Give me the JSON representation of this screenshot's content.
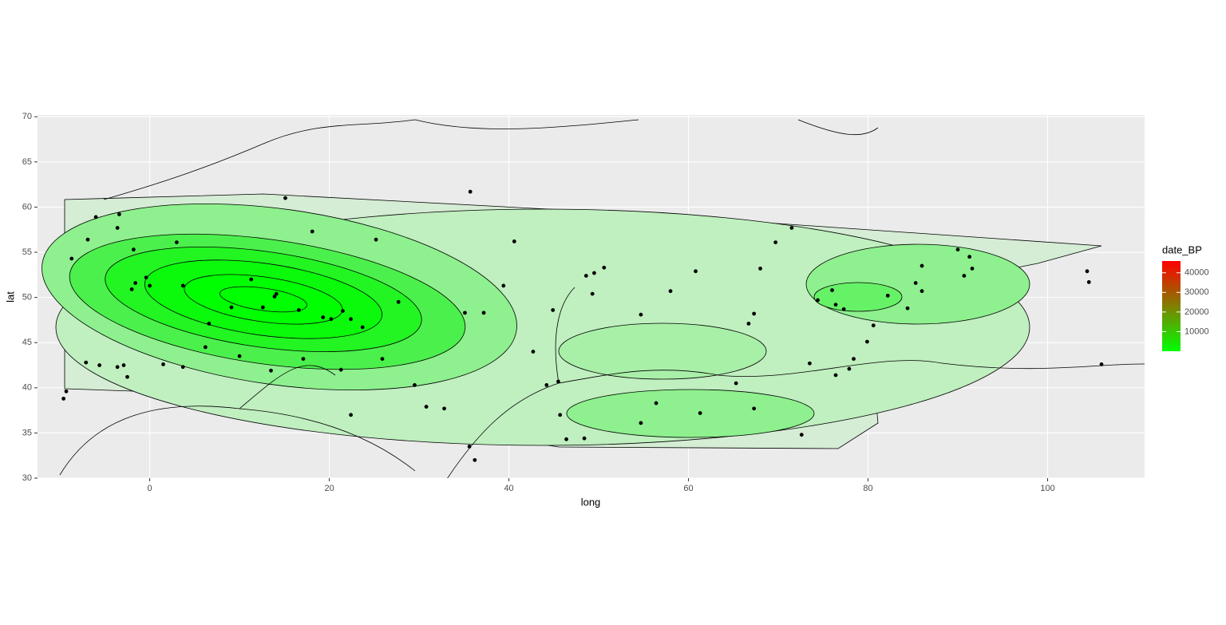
{
  "chart_data": {
    "type": "scatter",
    "x_label": "long",
    "y_label": "lat",
    "xlim": [
      -12.5,
      110.8
    ],
    "ylim": [
      30,
      70.2
    ],
    "xticks": [
      0,
      20,
      40,
      60,
      80,
      100
    ],
    "yticks": [
      30,
      35,
      40,
      45,
      50,
      55,
      60,
      65,
      70
    ],
    "grid": true,
    "color": "#000000",
    "x": [
      -3.4,
      -6.0,
      -6.9,
      -3.6,
      -8.7,
      -1.8,
      3.0,
      -0.4,
      -1.6,
      0,
      -2.0,
      -7.1,
      -5.6,
      -2.9,
      -3.6,
      -2.5,
      -9.3,
      -9.6,
      3.7,
      9.1,
      6.6,
      6.2,
      11.3,
      12.6,
      14.1,
      13.9,
      16.6,
      15.1,
      18.1,
      19.3,
      20.2,
      21.5,
      22.4,
      23.7,
      17.1,
      13.5,
      10.0,
      21.3,
      25.9,
      25.2,
      27.7,
      29.5,
      30.8,
      32.8,
      35.1,
      37.2,
      35.7,
      40.6,
      39.4,
      44.9,
      42.7,
      44.2,
      45.5,
      45.7,
      46.4,
      48.4,
      48.6,
      49.5,
      50.6,
      49.3,
      54.7,
      54.7,
      56.4,
      58.0,
      60.8,
      61.3,
      65.3,
      66.7,
      67.3,
      68.0,
      69.7,
      71.5,
      67.3,
      72.6,
      73.5,
      74.4,
      76.0,
      76.4,
      77.3,
      76.4,
      77.9,
      78.4,
      79.9,
      80.6,
      82.2,
      84.4,
      85.3,
      86.0,
      86.0,
      90.0,
      91.3,
      91.6,
      90.7,
      104.4,
      104.6,
      106.0,
      36.2,
      35.6,
      22.4,
      1.5,
      3.7
    ],
    "values": [
      59.2,
      58.9,
      56.4,
      57.7,
      54.3,
      55.3,
      56.1,
      52.2,
      51.6,
      51.3,
      50.9,
      42.8,
      42.5,
      42.5,
      42.3,
      41.2,
      39.6,
      38.8,
      51.3,
      48.9,
      47.1,
      44.5,
      52.0,
      48.9,
      50.4,
      50.1,
      48.6,
      61.0,
      57.3,
      47.8,
      47.6,
      48.5,
      47.6,
      46.7,
      43.2,
      41.9,
      43.5,
      42.0,
      43.2,
      56.4,
      49.5,
      40.3,
      37.9,
      37.7,
      48.3,
      48.3,
      61.7,
      56.2,
      51.3,
      48.6,
      44.0,
      40.3,
      40.7,
      37.0,
      34.3,
      34.4,
      52.4,
      52.7,
      53.3,
      50.4,
      48.1,
      36.1,
      38.3,
      50.7,
      52.9,
      37.2,
      40.5,
      47.1,
      48.2,
      53.2,
      56.1,
      57.7,
      37.7,
      34.8,
      42.7,
      49.7,
      50.8,
      49.2,
      48.7,
      41.4,
      42.1,
      43.2,
      45.1,
      46.9,
      50.2,
      48.8,
      51.6,
      53.5,
      50.7,
      55.3,
      54.5,
      53.2,
      52.4,
      52.9,
      51.7,
      42.6,
      32.0,
      33.5,
      37.0,
      42.6,
      42.3
    ],
    "colorbar": {
      "title": "date_BP",
      "lim": [
        0,
        46000
      ],
      "ticks": [
        10000,
        20000,
        30000,
        40000
      ],
      "colors": [
        "#00ff00",
        "#ff0000"
      ]
    }
  }
}
